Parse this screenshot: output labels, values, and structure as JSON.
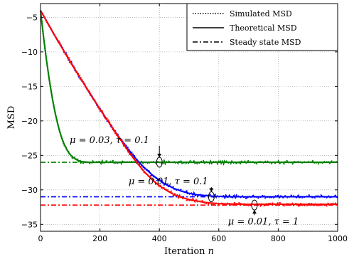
{
  "chart_data": {
    "type": "line",
    "title": "",
    "xlabel": "Iteration n",
    "xlabel_parts": {
      "text": "Iteration ",
      "var": "n"
    },
    "ylabel": "MSD",
    "xlim": [
      0,
      1000
    ],
    "ylim": [
      -36,
      -3
    ],
    "xticks": [
      0,
      200,
      400,
      600,
      800,
      1000
    ],
    "yticks": [
      -35,
      -30,
      -25,
      -20,
      -15,
      -10,
      -5
    ],
    "grid": true,
    "grid_style": "dotted",
    "legend": {
      "placement": "top-right",
      "entries": [
        {
          "label": "Simulated MSD",
          "style": "dotted"
        },
        {
          "label": "Theoretical MSD",
          "style": "solid"
        },
        {
          "label": "Steady state MSD",
          "style": "dashdot"
        }
      ]
    },
    "series": [
      {
        "case": "mu=0.03, tau=0.1",
        "color": "#008000",
        "x": [
          0,
          10,
          20,
          30,
          40,
          50,
          60,
          70,
          80,
          90,
          100,
          110,
          120,
          130,
          140,
          150,
          160,
          180,
          200,
          250,
          300,
          350,
          400,
          450,
          500,
          550,
          600,
          650,
          700,
          750,
          800,
          850,
          900,
          950,
          1000
        ],
        "theoretical": [
          -4.0,
          -7.8,
          -11.2,
          -14.2,
          -16.8,
          -19.0,
          -20.8,
          -22.3,
          -23.4,
          -24.3,
          -24.9,
          -25.3,
          -25.6,
          -25.8,
          -25.9,
          -25.95,
          -26.0,
          -26.0,
          -26.0,
          -26.0,
          -26.0,
          -26.0,
          -26.0,
          -26.0,
          -26.0,
          -26.0,
          -26.0,
          -26.0,
          -26.0,
          -26.0,
          -26.0,
          -26.0,
          -26.0,
          -26.0,
          -26.0
        ],
        "steady_state": -26.0
      },
      {
        "case": "mu=0.01, tau=0.1",
        "color": "#0000ff",
        "x": [
          0,
          25,
          50,
          75,
          100,
          125,
          150,
          175,
          200,
          225,
          250,
          275,
          300,
          325,
          350,
          375,
          400,
          425,
          450,
          475,
          500,
          525,
          550,
          575,
          600,
          650,
          700,
          750,
          800,
          850,
          900,
          950,
          1000
        ],
        "theoretical": [
          -4.0,
          -5.9,
          -7.8,
          -9.6,
          -11.4,
          -13.2,
          -14.9,
          -16.6,
          -18.3,
          -19.9,
          -21.5,
          -23.0,
          -24.4,
          -25.7,
          -26.8,
          -27.8,
          -28.6,
          -29.3,
          -29.8,
          -30.2,
          -30.5,
          -30.7,
          -30.8,
          -30.9,
          -30.95,
          -31.0,
          -31.0,
          -31.0,
          -31.0,
          -31.0,
          -31.0,
          -31.0,
          -31.0
        ],
        "steady_state": -31.0
      },
      {
        "case": "mu=0.01, tau=1",
        "color": "#ff0000",
        "x": [
          0,
          25,
          50,
          75,
          100,
          125,
          150,
          175,
          200,
          225,
          250,
          275,
          300,
          325,
          350,
          375,
          400,
          425,
          450,
          475,
          500,
          525,
          550,
          575,
          600,
          650,
          700,
          750,
          800,
          850,
          900,
          950,
          1000
        ],
        "theoretical": [
          -4.0,
          -5.9,
          -7.8,
          -9.6,
          -11.4,
          -13.2,
          -14.9,
          -16.6,
          -18.3,
          -19.9,
          -21.5,
          -23.1,
          -24.7,
          -26.1,
          -27.4,
          -28.5,
          -29.4,
          -30.1,
          -30.7,
          -31.1,
          -31.4,
          -31.6,
          -31.8,
          -31.9,
          -32.0,
          -32.05,
          -32.1,
          -32.1,
          -32.1,
          -32.1,
          -32.1,
          -32.1,
          -32.1
        ],
        "steady_state": -32.2
      }
    ],
    "annotations": [
      {
        "text": "μ = 0.03, τ = 0.1",
        "x": 232,
        "y": -23.2,
        "pointer_x": 400,
        "pointer_y": -26.0
      },
      {
        "text": "μ = 0.01, τ = 0.1",
        "x": 430,
        "y": -29.2,
        "pointer_x": 575,
        "pointer_y": -31.0
      },
      {
        "text": "μ = 0.01, τ = 1",
        "x": 750,
        "y": -35.0,
        "pointer_x": 720,
        "pointer_y": -32.2
      }
    ]
  }
}
